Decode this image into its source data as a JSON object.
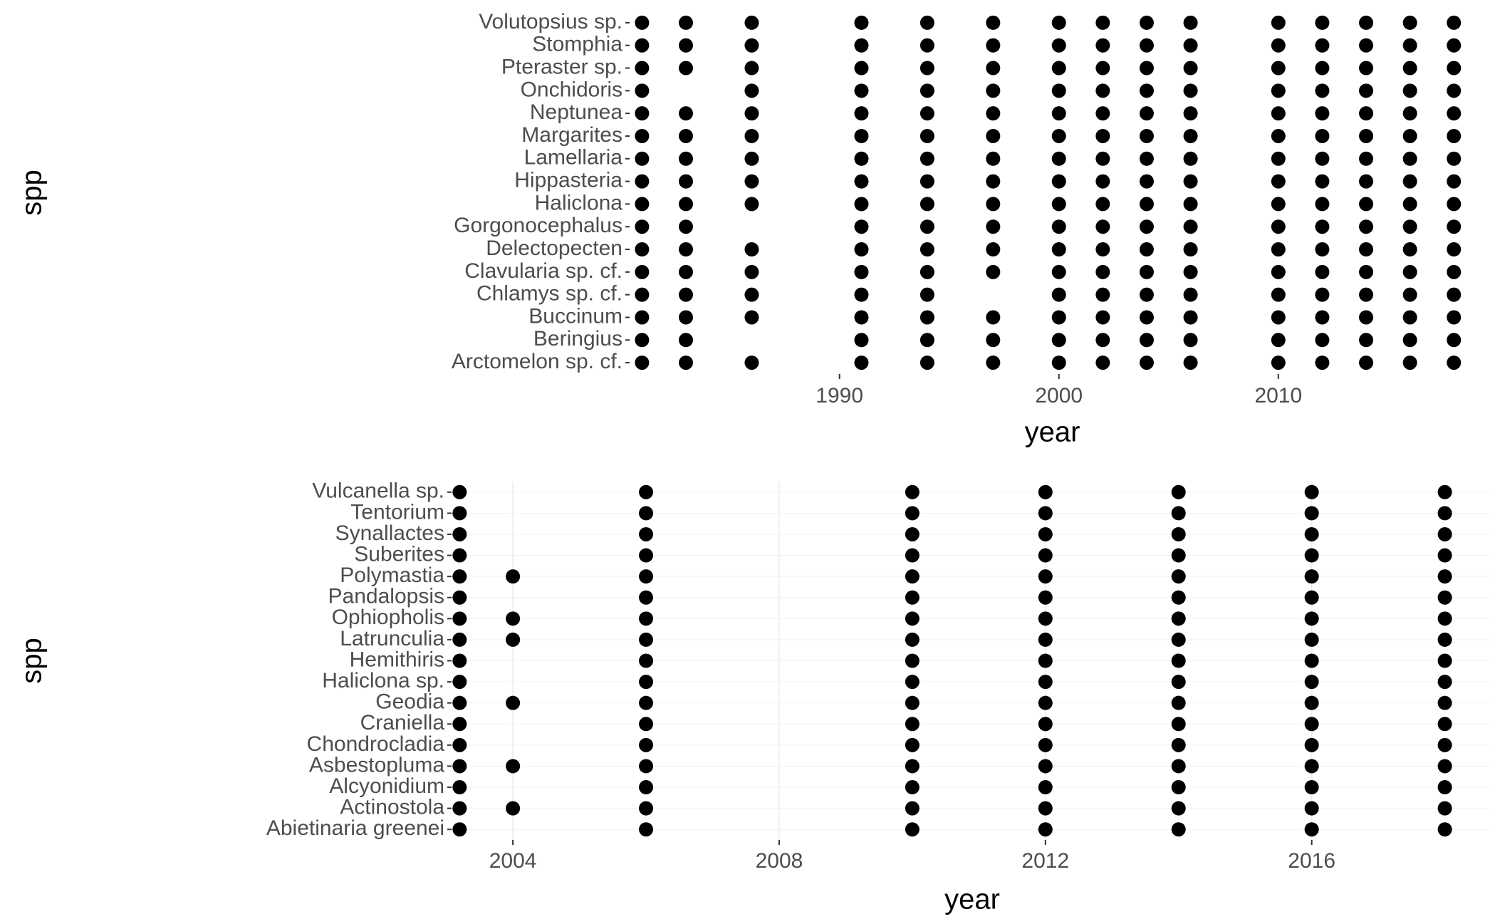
{
  "chart_data": [
    {
      "type": "scatter",
      "xlabel": "year",
      "ylabel": "spp",
      "color": "#000000",
      "grid": false,
      "xlim": [
        1980.5,
        2018.9
      ],
      "xticks": [
        1990,
        2000,
        2010
      ],
      "categories": [
        "Arctomelon sp. cf.",
        "Beringius",
        "Buccinum",
        "Chlamys sp. cf.",
        "Clavularia sp. cf.",
        "Delectopecten",
        "Gorgonocephalus",
        "Haliclona",
        "Hippasteria",
        "Lamellaria",
        "Margarites",
        "Neptunea",
        "Onchidoris",
        "Pteraster sp.",
        "Stomphia",
        "Volutopsius sp."
      ],
      "years": [
        [
          1981,
          1983,
          1986,
          1991,
          1994,
          1997,
          2000,
          2002,
          2004,
          2006,
          2010,
          2012,
          2014,
          2016,
          2018
        ],
        [
          1981,
          1983,
          1991,
          1994,
          1997,
          2000,
          2002,
          2004,
          2006,
          2010,
          2012,
          2014,
          2016,
          2018
        ],
        [
          1981,
          1983,
          1986,
          1991,
          1994,
          1997,
          2000,
          2002,
          2004,
          2006,
          2010,
          2012,
          2014,
          2016,
          2018
        ],
        [
          1981,
          1983,
          1986,
          1991,
          1994,
          2000,
          2002,
          2004,
          2006,
          2010,
          2012,
          2014,
          2016,
          2018
        ],
        [
          1981,
          1983,
          1986,
          1991,
          1994,
          1997,
          2000,
          2002,
          2004,
          2006,
          2010,
          2012,
          2014,
          2016,
          2018
        ],
        [
          1981,
          1983,
          1986,
          1991,
          1994,
          1997,
          2000,
          2002,
          2004,
          2006,
          2010,
          2012,
          2014,
          2016,
          2018
        ],
        [
          1981,
          1983,
          1991,
          1994,
          1997,
          2000,
          2002,
          2004,
          2006,
          2010,
          2012,
          2014,
          2016,
          2018
        ],
        [
          1981,
          1983,
          1986,
          1991,
          1994,
          1997,
          2000,
          2002,
          2004,
          2006,
          2010,
          2012,
          2014,
          2016,
          2018
        ],
        [
          1981,
          1983,
          1986,
          1991,
          1994,
          1997,
          2000,
          2002,
          2004,
          2006,
          2010,
          2012,
          2014,
          2016,
          2018
        ],
        [
          1981,
          1983,
          1986,
          1991,
          1994,
          1997,
          2000,
          2002,
          2004,
          2006,
          2010,
          2012,
          2014,
          2016,
          2018
        ],
        [
          1981,
          1983,
          1986,
          1991,
          1994,
          1997,
          2000,
          2002,
          2004,
          2006,
          2010,
          2012,
          2014,
          2016,
          2018
        ],
        [
          1981,
          1983,
          1986,
          1991,
          1994,
          1997,
          2000,
          2002,
          2004,
          2006,
          2010,
          2012,
          2014,
          2016,
          2018
        ],
        [
          1981,
          1986,
          1991,
          1994,
          1997,
          2000,
          2002,
          2004,
          2006,
          2010,
          2012,
          2014,
          2016,
          2018
        ],
        [
          1981,
          1983,
          1986,
          1991,
          1994,
          1997,
          2000,
          2002,
          2004,
          2006,
          2010,
          2012,
          2014,
          2016,
          2018
        ],
        [
          1981,
          1983,
          1986,
          1991,
          1994,
          1997,
          2000,
          2002,
          2004,
          2006,
          2010,
          2012,
          2014,
          2016,
          2018
        ],
        [
          1981,
          1983,
          1986,
          1991,
          1994,
          1997,
          2000,
          2002,
          2004,
          2006,
          2010,
          2012,
          2014,
          2016,
          2018
        ]
      ]
    },
    {
      "type": "scatter",
      "xlabel": "year",
      "ylabel": "spp",
      "color": "#000000",
      "grid": true,
      "xlim": [
        2003.1,
        2018.7
      ],
      "xticks": [
        2004,
        2008,
        2012,
        2016
      ],
      "categories": [
        "Abietinaria greenei",
        "Actinostola",
        "Alcyonidium",
        "Asbestopluma",
        "Chondrocladia",
        "Craniella",
        "Geodia",
        "Haliclona sp.",
        "Hemithiris",
        "Latrunculia",
        "Ophiopholis",
        "Pandalopsis",
        "Polymastia",
        "Suberites",
        "Synallactes",
        "Tentorium",
        "Vulcanella sp."
      ],
      "years": [
        [
          2003.2,
          2006,
          2010,
          2012,
          2014,
          2016,
          2018
        ],
        [
          2003.2,
          2004,
          2006,
          2010,
          2012,
          2014,
          2016,
          2018
        ],
        [
          2003.2,
          2006,
          2010,
          2012,
          2014,
          2016,
          2018
        ],
        [
          2003.2,
          2004,
          2006,
          2010,
          2012,
          2014,
          2016,
          2018
        ],
        [
          2003.2,
          2006,
          2010,
          2012,
          2014,
          2016,
          2018
        ],
        [
          2003.2,
          2006,
          2010,
          2012,
          2014,
          2016,
          2018
        ],
        [
          2003.2,
          2004,
          2006,
          2010,
          2012,
          2014,
          2016,
          2018
        ],
        [
          2003.2,
          2006,
          2010,
          2012,
          2014,
          2016,
          2018
        ],
        [
          2003.2,
          2006,
          2010,
          2012,
          2014,
          2016,
          2018
        ],
        [
          2003.2,
          2004,
          2006,
          2010,
          2012,
          2014,
          2016,
          2018
        ],
        [
          2003.2,
          2004,
          2006,
          2010,
          2012,
          2014,
          2016,
          2018
        ],
        [
          2003.2,
          2006,
          2010,
          2012,
          2014,
          2016,
          2018
        ],
        [
          2003.2,
          2004,
          2006,
          2010,
          2012,
          2014,
          2016,
          2018
        ],
        [
          2003.2,
          2006,
          2010,
          2012,
          2014,
          2016,
          2018
        ],
        [
          2003.2,
          2006,
          2010,
          2012,
          2014,
          2016,
          2018
        ],
        [
          2003.2,
          2006,
          2010,
          2012,
          2014,
          2016,
          2018
        ],
        [
          2003.2,
          2006,
          2010,
          2012,
          2014,
          2016,
          2018
        ]
      ]
    }
  ]
}
